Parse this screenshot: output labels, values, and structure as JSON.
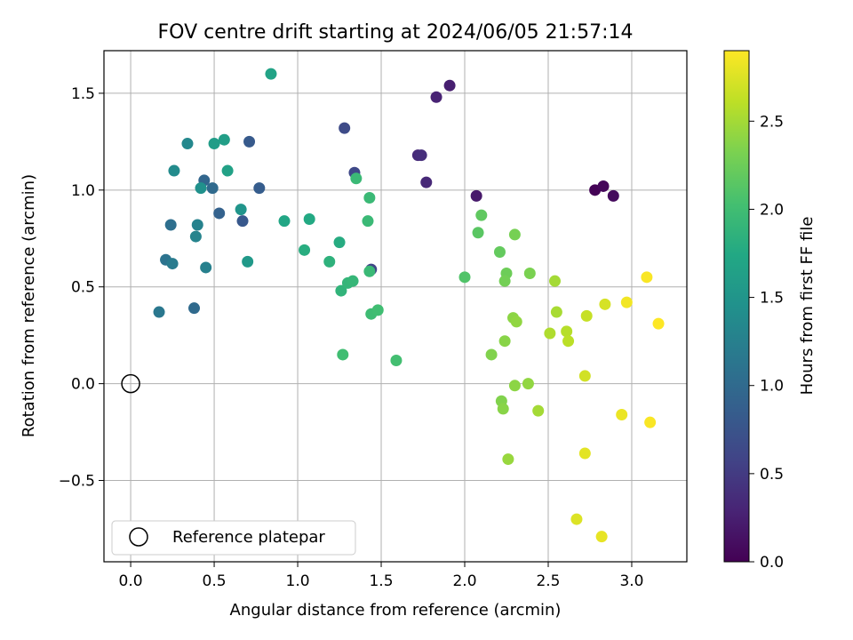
{
  "chart_data": {
    "type": "scatter",
    "title": "FOV centre drift starting at 2024/06/05 21:57:14",
    "xlabel": "Angular distance from reference (arcmin)",
    "ylabel": "Rotation from reference (arcmin)",
    "xlim": [
      -0.16,
      3.33
    ],
    "ylim": [
      -0.92,
      1.72
    ],
    "xticks": [
      0.0,
      0.5,
      1.0,
      1.5,
      2.0,
      2.5,
      3.0
    ],
    "xtick_labels": [
      "0.0",
      "0.5",
      "1.0",
      "1.5",
      "2.0",
      "2.5",
      "3.0"
    ],
    "yticks": [
      -0.5,
      0.0,
      0.5,
      1.0,
      1.5
    ],
    "ytick_labels": [
      "−0.5",
      "0.0",
      "0.5",
      "1.0",
      "1.5"
    ],
    "grid": true,
    "colorbar": {
      "label": "Hours from first FF file",
      "colormap": "viridis",
      "range": [
        0.0,
        2.9
      ],
      "ticks": [
        0.0,
        0.5,
        1.0,
        1.5,
        2.0,
        2.5
      ],
      "tick_labels": [
        "0.0",
        "0.5",
        "1.0",
        "1.5",
        "2.0",
        "2.5"
      ]
    },
    "reference": {
      "x": 0.0,
      "y": 0.0,
      "marker": "open-circle",
      "legend_label": "Reference platepar"
    },
    "legend_position": "lower-left",
    "points": [
      {
        "x": 2.78,
        "y": 1.0,
        "c": 0.02
      },
      {
        "x": 2.83,
        "y": 1.02,
        "c": 0.05
      },
      {
        "x": 2.89,
        "y": 0.97,
        "c": 0.08
      },
      {
        "x": 2.07,
        "y": 0.97,
        "c": 0.2
      },
      {
        "x": 1.91,
        "y": 1.54,
        "c": 0.25
      },
      {
        "x": 1.83,
        "y": 1.48,
        "c": 0.28
      },
      {
        "x": 1.72,
        "y": 1.18,
        "c": 0.35
      },
      {
        "x": 1.74,
        "y": 1.18,
        "c": 0.38
      },
      {
        "x": 1.77,
        "y": 1.04,
        "c": 0.33
      },
      {
        "x": 1.28,
        "y": 1.32,
        "c": 0.65
      },
      {
        "x": 1.34,
        "y": 1.09,
        "c": 0.62
      },
      {
        "x": 1.44,
        "y": 0.59,
        "c": 0.6
      },
      {
        "x": 0.77,
        "y": 1.01,
        "c": 0.85
      },
      {
        "x": 0.71,
        "y": 1.25,
        "c": 0.82
      },
      {
        "x": 0.67,
        "y": 0.84,
        "c": 0.8
      },
      {
        "x": 0.53,
        "y": 0.88,
        "c": 0.9
      },
      {
        "x": 0.44,
        "y": 1.05,
        "c": 0.95
      },
      {
        "x": 0.49,
        "y": 1.01,
        "c": 1.0
      },
      {
        "x": 0.24,
        "y": 0.82,
        "c": 1.05
      },
      {
        "x": 0.21,
        "y": 0.64,
        "c": 1.1
      },
      {
        "x": 0.38,
        "y": 0.39,
        "c": 1.0
      },
      {
        "x": 0.17,
        "y": 0.37,
        "c": 1.15
      },
      {
        "x": 0.25,
        "y": 0.62,
        "c": 1.2
      },
      {
        "x": 0.45,
        "y": 0.6,
        "c": 1.25
      },
      {
        "x": 0.39,
        "y": 0.76,
        "c": 1.3
      },
      {
        "x": 0.4,
        "y": 0.82,
        "c": 1.28
      },
      {
        "x": 0.34,
        "y": 1.24,
        "c": 1.35
      },
      {
        "x": 0.26,
        "y": 1.1,
        "c": 1.38
      },
      {
        "x": 0.42,
        "y": 1.01,
        "c": 1.45
      },
      {
        "x": 0.66,
        "y": 0.9,
        "c": 1.5
      },
      {
        "x": 0.7,
        "y": 0.63,
        "c": 1.55
      },
      {
        "x": 0.5,
        "y": 1.24,
        "c": 1.6
      },
      {
        "x": 0.56,
        "y": 1.26,
        "c": 1.62
      },
      {
        "x": 0.58,
        "y": 1.1,
        "c": 1.65
      },
      {
        "x": 0.84,
        "y": 1.6,
        "c": 1.68
      },
      {
        "x": 0.92,
        "y": 0.84,
        "c": 1.72
      },
      {
        "x": 1.07,
        "y": 0.85,
        "c": 1.75
      },
      {
        "x": 1.04,
        "y": 0.69,
        "c": 1.8
      },
      {
        "x": 1.25,
        "y": 0.73,
        "c": 1.78
      },
      {
        "x": 1.19,
        "y": 0.63,
        "c": 1.85
      },
      {
        "x": 1.26,
        "y": 0.48,
        "c": 1.88
      },
      {
        "x": 1.3,
        "y": 0.52,
        "c": 1.9
      },
      {
        "x": 1.33,
        "y": 0.53,
        "c": 1.92
      },
      {
        "x": 1.35,
        "y": 1.06,
        "c": 1.95
      },
      {
        "x": 1.43,
        "y": 0.96,
        "c": 1.95
      },
      {
        "x": 1.42,
        "y": 0.84,
        "c": 1.95
      },
      {
        "x": 1.43,
        "y": 0.58,
        "c": 1.95
      },
      {
        "x": 1.44,
        "y": 0.36,
        "c": 1.98
      },
      {
        "x": 1.48,
        "y": 0.38,
        "c": 2.0
      },
      {
        "x": 1.27,
        "y": 0.15,
        "c": 2.0
      },
      {
        "x": 1.59,
        "y": 0.12,
        "c": 2.02
      },
      {
        "x": 2.0,
        "y": 0.55,
        "c": 2.1
      },
      {
        "x": 2.08,
        "y": 0.78,
        "c": 2.15
      },
      {
        "x": 2.1,
        "y": 0.87,
        "c": 2.18
      },
      {
        "x": 2.21,
        "y": 0.68,
        "c": 2.2
      },
      {
        "x": 2.25,
        "y": 0.57,
        "c": 2.25
      },
      {
        "x": 2.24,
        "y": 0.53,
        "c": 2.28
      },
      {
        "x": 2.3,
        "y": 0.77,
        "c": 2.3
      },
      {
        "x": 2.39,
        "y": 0.57,
        "c": 2.32
      },
      {
        "x": 2.16,
        "y": 0.15,
        "c": 2.35
      },
      {
        "x": 2.24,
        "y": 0.22,
        "c": 2.38
      },
      {
        "x": 2.29,
        "y": 0.34,
        "c": 2.4
      },
      {
        "x": 2.31,
        "y": 0.32,
        "c": 2.42
      },
      {
        "x": 2.22,
        "y": -0.09,
        "c": 2.35
      },
      {
        "x": 2.23,
        "y": -0.13,
        "c": 2.38
      },
      {
        "x": 2.3,
        "y": -0.01,
        "c": 2.4
      },
      {
        "x": 2.38,
        "y": 0.0,
        "c": 2.42
      },
      {
        "x": 2.26,
        "y": -0.39,
        "c": 2.45
      },
      {
        "x": 2.44,
        "y": -0.14,
        "c": 2.5
      },
      {
        "x": 2.54,
        "y": 0.53,
        "c": 2.5
      },
      {
        "x": 2.55,
        "y": 0.37,
        "c": 2.52
      },
      {
        "x": 2.51,
        "y": 0.26,
        "c": 2.55
      },
      {
        "x": 2.61,
        "y": 0.27,
        "c": 2.58
      },
      {
        "x": 2.62,
        "y": 0.22,
        "c": 2.6
      },
      {
        "x": 2.73,
        "y": 0.35,
        "c": 2.65
      },
      {
        "x": 2.72,
        "y": 0.04,
        "c": 2.7
      },
      {
        "x": 2.84,
        "y": 0.41,
        "c": 2.72
      },
      {
        "x": 2.67,
        "y": -0.7,
        "c": 2.75
      },
      {
        "x": 2.72,
        "y": -0.36,
        "c": 2.78
      },
      {
        "x": 2.82,
        "y": -0.79,
        "c": 2.8
      },
      {
        "x": 2.94,
        "y": -0.16,
        "c": 2.82
      },
      {
        "x": 2.97,
        "y": 0.42,
        "c": 2.85
      },
      {
        "x": 3.09,
        "y": 0.55,
        "c": 2.88
      },
      {
        "x": 3.11,
        "y": -0.2,
        "c": 2.88
      },
      {
        "x": 3.16,
        "y": 0.31,
        "c": 2.9
      }
    ]
  }
}
